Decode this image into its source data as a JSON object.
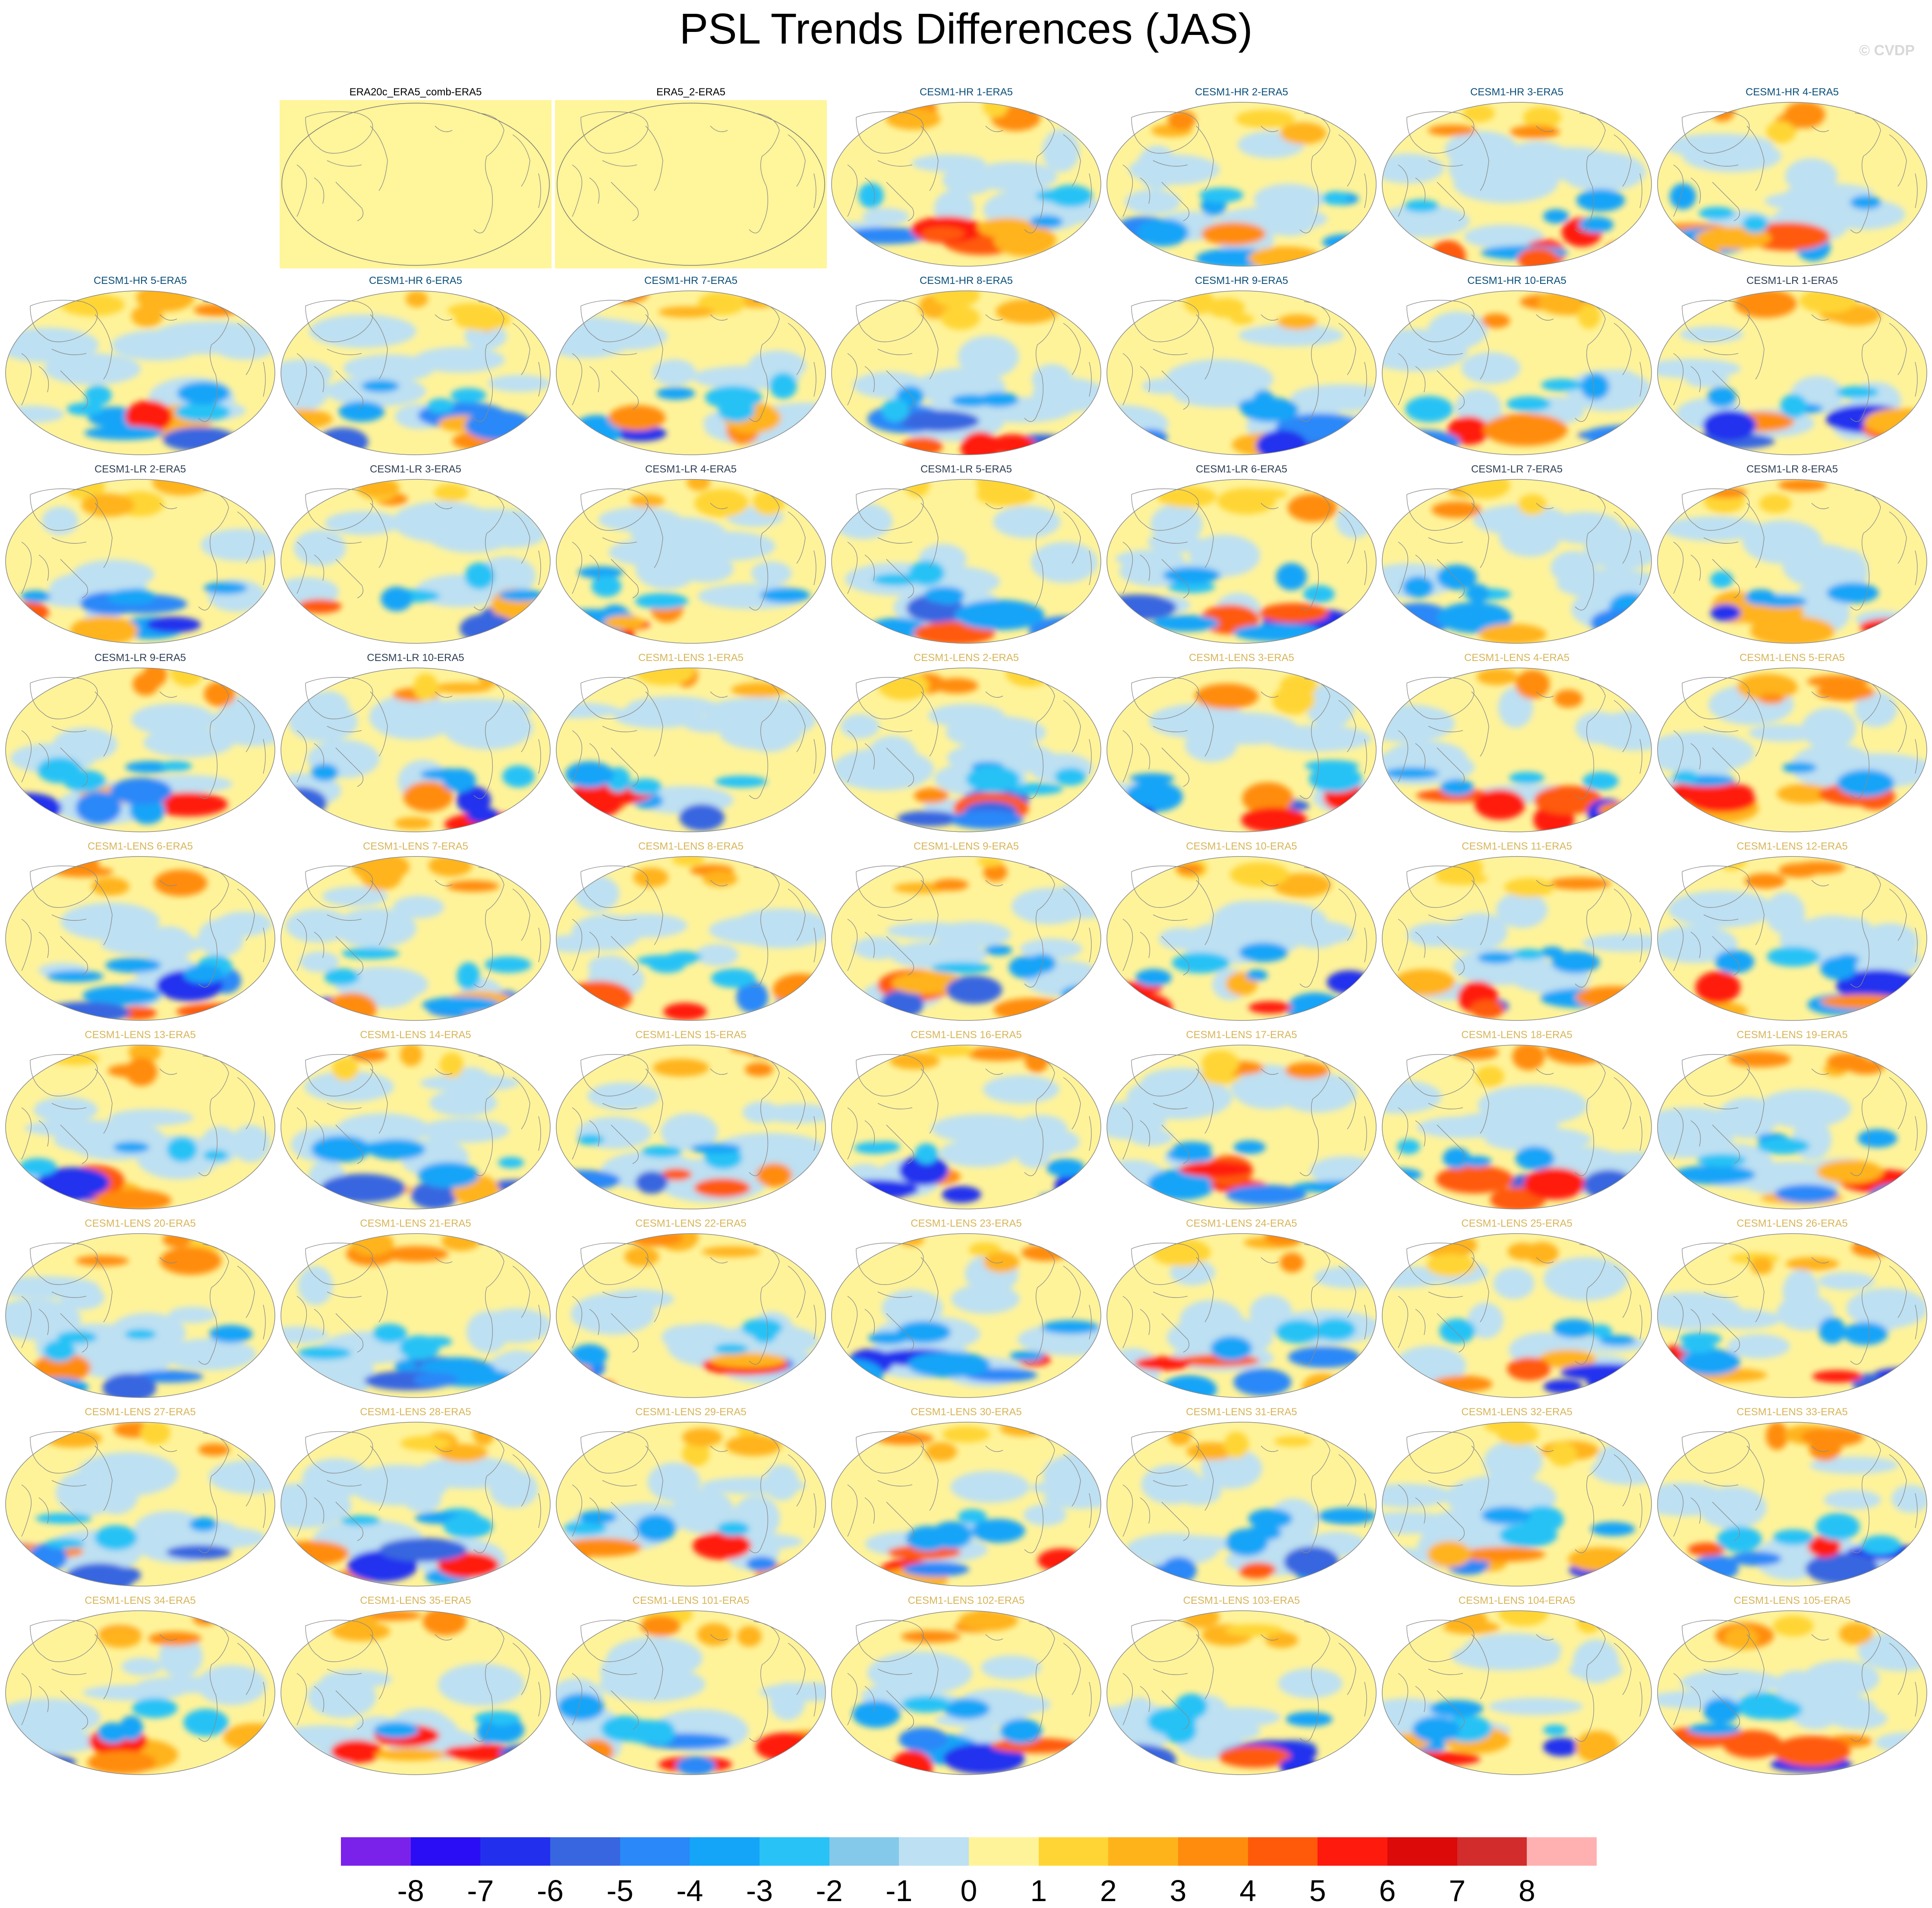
{
  "header": {
    "title": "PSL Trends Differences (JAS)",
    "watermark": "© CVDP"
  },
  "legend": {
    "labels": [
      "-8",
      "-7",
      "-6",
      "-5",
      "-4",
      "-3",
      "-2",
      "-1",
      "0",
      "1",
      "2",
      "3",
      "4",
      "5",
      "6",
      "7",
      "8"
    ],
    "colors": [
      "#7b22ea",
      "#2a0df5",
      "#2230ee",
      "#3866e0",
      "#2a88f8",
      "#14a4f8",
      "#28c2f6",
      "#84c9ea",
      "#bde0f2",
      "#fff39a",
      "#ffd535",
      "#ffb31a",
      "#ff8c0c",
      "#ff5a0a",
      "#ff1a0e",
      "#dd0a0a",
      "#d22c2c",
      "#ffb1b1"
    ]
  },
  "panels": [
    {
      "title": "",
      "row": 0,
      "col": 0,
      "empty": true
    },
    {
      "title": "ERA20c_ERA5_comb-ERA5",
      "row": 0,
      "col": 1,
      "group": "obs"
    },
    {
      "title": "ERA5_2-ERA5",
      "row": 0,
      "col": 2,
      "group": "obs"
    },
    {
      "title": "CESM1-HR 1-ERA5",
      "row": 0,
      "col": 3,
      "group": "hr"
    },
    {
      "title": "CESM1-HR 2-ERA5",
      "row": 0,
      "col": 4,
      "group": "hr"
    },
    {
      "title": "CESM1-HR 3-ERA5",
      "row": 0,
      "col": 5,
      "group": "hr"
    },
    {
      "title": "CESM1-HR 4-ERA5",
      "row": 0,
      "col": 6,
      "group": "hr"
    },
    {
      "title": "CESM1-HR 5-ERA5",
      "row": 1,
      "col": 0,
      "group": "hr"
    },
    {
      "title": "CESM1-HR 6-ERA5",
      "row": 1,
      "col": 1,
      "group": "hr"
    },
    {
      "title": "CESM1-HR 7-ERA5",
      "row": 1,
      "col": 2,
      "group": "hr"
    },
    {
      "title": "CESM1-HR 8-ERA5",
      "row": 1,
      "col": 3,
      "group": "hr"
    },
    {
      "title": "CESM1-HR 9-ERA5",
      "row": 1,
      "col": 4,
      "group": "hr"
    },
    {
      "title": "CESM1-HR 10-ERA5",
      "row": 1,
      "col": 5,
      "group": "hr"
    },
    {
      "title": "CESM1-LR 1-ERA5",
      "row": 1,
      "col": 6,
      "group": "lr"
    },
    {
      "title": "CESM1-LR 2-ERA5",
      "row": 2,
      "col": 0,
      "group": "lr"
    },
    {
      "title": "CESM1-LR 3-ERA5",
      "row": 2,
      "col": 1,
      "group": "lr"
    },
    {
      "title": "CESM1-LR 4-ERA5",
      "row": 2,
      "col": 2,
      "group": "lr"
    },
    {
      "title": "CESM1-LR 5-ERA5",
      "row": 2,
      "col": 3,
      "group": "lr"
    },
    {
      "title": "CESM1-LR 6-ERA5",
      "row": 2,
      "col": 4,
      "group": "lr"
    },
    {
      "title": "CESM1-LR 7-ERA5",
      "row": 2,
      "col": 5,
      "group": "lr"
    },
    {
      "title": "CESM1-LR 8-ERA5",
      "row": 2,
      "col": 6,
      "group": "lr"
    },
    {
      "title": "CESM1-LR 9-ERA5",
      "row": 3,
      "col": 0,
      "group": "lr"
    },
    {
      "title": "CESM1-LR 10-ERA5",
      "row": 3,
      "col": 1,
      "group": "lr"
    },
    {
      "title": "CESM1-LENS 1-ERA5",
      "row": 3,
      "col": 2,
      "group": "lens"
    },
    {
      "title": "CESM1-LENS 2-ERA5",
      "row": 3,
      "col": 3,
      "group": "lens"
    },
    {
      "title": "CESM1-LENS 3-ERA5",
      "row": 3,
      "col": 4,
      "group": "lens"
    },
    {
      "title": "CESM1-LENS 4-ERA5",
      "row": 3,
      "col": 5,
      "group": "lens"
    },
    {
      "title": "CESM1-LENS 5-ERA5",
      "row": 3,
      "col": 6,
      "group": "lens"
    },
    {
      "title": "CESM1-LENS 6-ERA5",
      "row": 4,
      "col": 0,
      "group": "lens"
    },
    {
      "title": "CESM1-LENS 7-ERA5",
      "row": 4,
      "col": 1,
      "group": "lens"
    },
    {
      "title": "CESM1-LENS 8-ERA5",
      "row": 4,
      "col": 2,
      "group": "lens"
    },
    {
      "title": "CESM1-LENS 9-ERA5",
      "row": 4,
      "col": 3,
      "group": "lens"
    },
    {
      "title": "CESM1-LENS 10-ERA5",
      "row": 4,
      "col": 4,
      "group": "lens"
    },
    {
      "title": "CESM1-LENS 11-ERA5",
      "row": 4,
      "col": 5,
      "group": "lens"
    },
    {
      "title": "CESM1-LENS 12-ERA5",
      "row": 4,
      "col": 6,
      "group": "lens"
    },
    {
      "title": "CESM1-LENS 13-ERA5",
      "row": 5,
      "col": 0,
      "group": "lens"
    },
    {
      "title": "CESM1-LENS 14-ERA5",
      "row": 5,
      "col": 1,
      "group": "lens"
    },
    {
      "title": "CESM1-LENS 15-ERA5",
      "row": 5,
      "col": 2,
      "group": "lens"
    },
    {
      "title": "CESM1-LENS 16-ERA5",
      "row": 5,
      "col": 3,
      "group": "lens"
    },
    {
      "title": "CESM1-LENS 17-ERA5",
      "row": 5,
      "col": 4,
      "group": "lens"
    },
    {
      "title": "CESM1-LENS 18-ERA5",
      "row": 5,
      "col": 5,
      "group": "lens"
    },
    {
      "title": "CESM1-LENS 19-ERA5",
      "row": 5,
      "col": 6,
      "group": "lens"
    },
    {
      "title": "CESM1-LENS 20-ERA5",
      "row": 6,
      "col": 0,
      "group": "lens"
    },
    {
      "title": "CESM1-LENS 21-ERA5",
      "row": 6,
      "col": 1,
      "group": "lens"
    },
    {
      "title": "CESM1-LENS 22-ERA5",
      "row": 6,
      "col": 2,
      "group": "lens"
    },
    {
      "title": "CESM1-LENS 23-ERA5",
      "row": 6,
      "col": 3,
      "group": "lens"
    },
    {
      "title": "CESM1-LENS 24-ERA5",
      "row": 6,
      "col": 4,
      "group": "lens"
    },
    {
      "title": "CESM1-LENS 25-ERA5",
      "row": 6,
      "col": 5,
      "group": "lens"
    },
    {
      "title": "CESM1-LENS 26-ERA5",
      "row": 6,
      "col": 6,
      "group": "lens"
    },
    {
      "title": "CESM1-LENS 27-ERA5",
      "row": 7,
      "col": 0,
      "group": "lens"
    },
    {
      "title": "CESM1-LENS 28-ERA5",
      "row": 7,
      "col": 1,
      "group": "lens"
    },
    {
      "title": "CESM1-LENS 29-ERA5",
      "row": 7,
      "col": 2,
      "group": "lens"
    },
    {
      "title": "CESM1-LENS 30-ERA5",
      "row": 7,
      "col": 3,
      "group": "lens"
    },
    {
      "title": "CESM1-LENS 31-ERA5",
      "row": 7,
      "col": 4,
      "group": "lens"
    },
    {
      "title": "CESM1-LENS 32-ERA5",
      "row": 7,
      "col": 5,
      "group": "lens"
    },
    {
      "title": "CESM1-LENS 33-ERA5",
      "row": 7,
      "col": 6,
      "group": "lens"
    },
    {
      "title": "CESM1-LENS 34-ERA5",
      "row": 8,
      "col": 0,
      "group": "lens"
    },
    {
      "title": "CESM1-LENS 35-ERA5",
      "row": 8,
      "col": 1,
      "group": "lens"
    },
    {
      "title": "CESM1-LENS 101-ERA5",
      "row": 8,
      "col": 2,
      "group": "lens"
    },
    {
      "title": "CESM1-LENS 102-ERA5",
      "row": 8,
      "col": 3,
      "group": "lens"
    },
    {
      "title": "CESM1-LENS 103-ERA5",
      "row": 8,
      "col": 4,
      "group": "lens"
    },
    {
      "title": "CESM1-LENS 104-ERA5",
      "row": 8,
      "col": 5,
      "group": "lens"
    },
    {
      "title": "CESM1-LENS 105-ERA5",
      "row": 8,
      "col": 6,
      "group": "lens"
    }
  ],
  "title_colors": {
    "obs": "#000000",
    "hr": "#0b4f7a",
    "lr": "#2f3f55",
    "lens": "#d8b55a"
  }
}
